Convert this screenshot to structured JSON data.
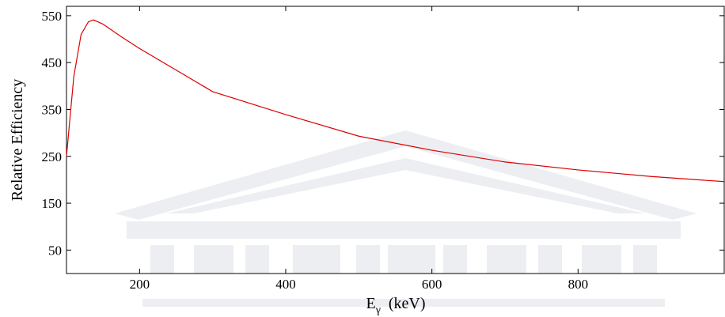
{
  "chart_data": {
    "type": "line",
    "ylabel": "Relative Efficiency",
    "xlabel": {
      "base": "E",
      "sub": "γ",
      "unit": "(keV)"
    },
    "x": [
      100,
      110,
      120,
      130,
      137,
      150,
      175,
      200,
      300,
      400,
      500,
      600,
      700,
      800,
      900,
      1000
    ],
    "series": [
      {
        "name": "Relative Efficiency",
        "color": "#dd0000",
        "values": [
          250,
          420,
          510,
          537,
          541,
          532,
          505,
          480,
          388,
          339,
          293,
          263,
          238,
          221,
          207,
          196
        ]
      }
    ],
    "xlim": [
      100,
      1000
    ],
    "xticks": [
      200,
      400,
      600,
      800
    ],
    "ylim": [
      0,
      570
    ],
    "yticks": [
      50,
      150,
      250,
      350,
      450,
      550
    ]
  }
}
